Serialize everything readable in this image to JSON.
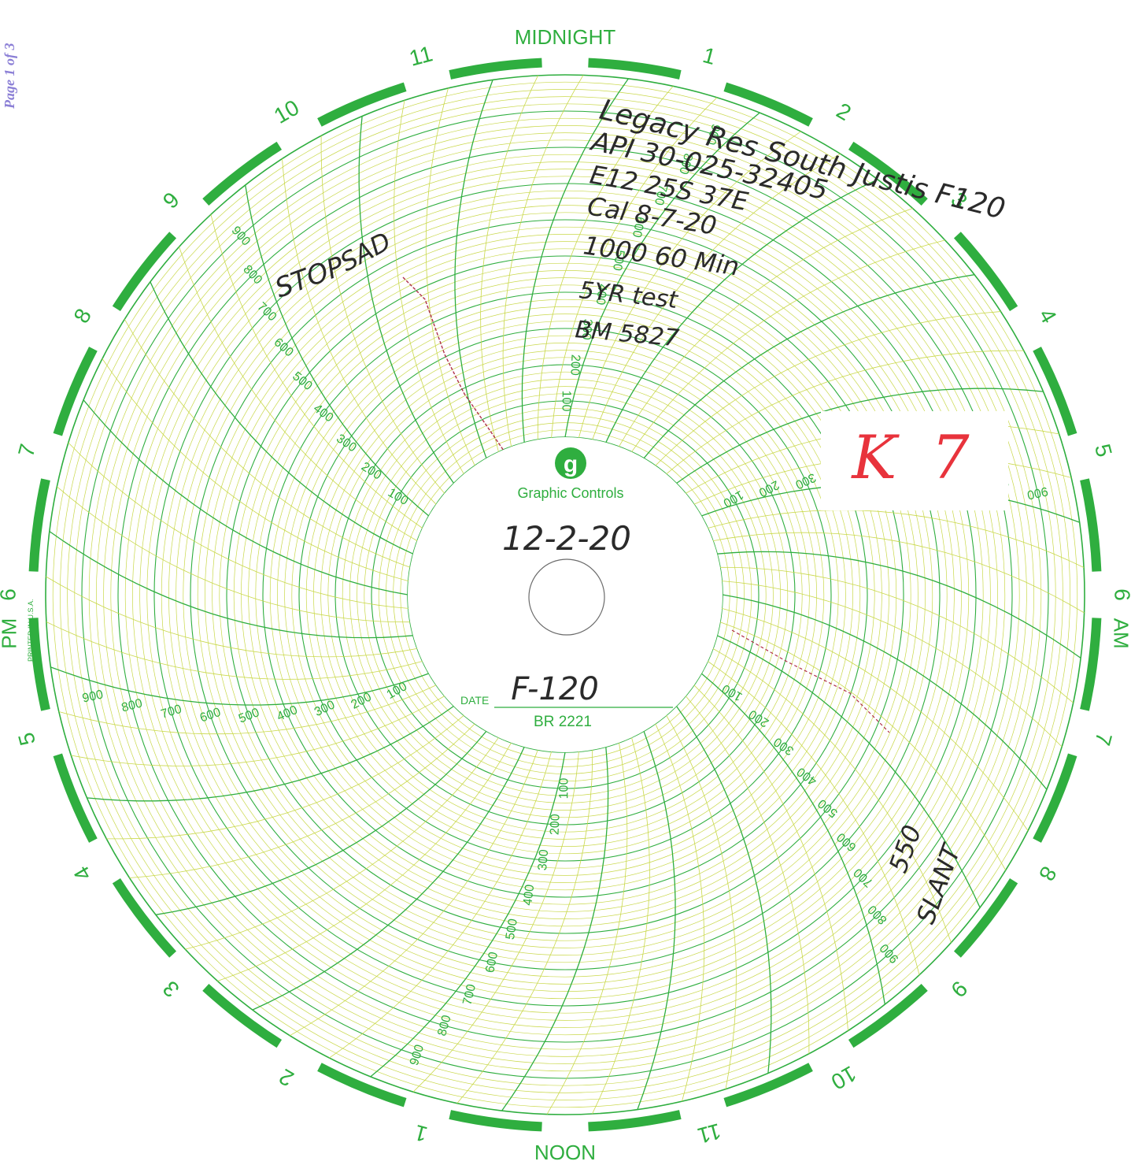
{
  "page": {
    "label": "Page 1 of 3"
  },
  "chart": {
    "brand": "Graphic Controls",
    "logo_letter": "g",
    "date_label": "DATE",
    "chart_number": "BR 2221",
    "printed_in": "PRINTED IN U.S.A.",
    "top_label": "MIDNIGHT",
    "bottom_label": "NOON",
    "am_label": "AM",
    "pm_label": "PM",
    "hours": [
      {
        "text": "MIDNIGHT",
        "angle": 0
      },
      {
        "text": "1",
        "angle": 15
      },
      {
        "text": "2",
        "angle": 30
      },
      {
        "text": "3",
        "angle": 45
      },
      {
        "text": "4",
        "angle": 60
      },
      {
        "text": "5",
        "angle": 75
      },
      {
        "text": "6",
        "angle": 90
      },
      {
        "text": "7",
        "angle": 105
      },
      {
        "text": "8",
        "angle": 120
      },
      {
        "text": "9",
        "angle": 135
      },
      {
        "text": "10",
        "angle": 150
      },
      {
        "text": "11",
        "angle": 165
      },
      {
        "text": "NOON",
        "angle": 180
      },
      {
        "text": "1",
        "angle": 195
      },
      {
        "text": "2",
        "angle": 210
      },
      {
        "text": "3",
        "angle": 225
      },
      {
        "text": "4",
        "angle": 240
      },
      {
        "text": "5",
        "angle": 255
      },
      {
        "text": "6",
        "angle": 270
      },
      {
        "text": "7",
        "angle": 285
      },
      {
        "text": "8",
        "angle": 300
      },
      {
        "text": "9",
        "angle": 315
      },
      {
        "text": "10",
        "angle": 330
      },
      {
        "text": "11",
        "angle": 345
      }
    ],
    "scale_values": [
      "100",
      "200",
      "300",
      "400",
      "500",
      "600",
      "700",
      "800",
      "900"
    ],
    "scale_angles": [
      0,
      60,
      120,
      180,
      240,
      300
    ],
    "colors": {
      "grid": "#2fae3f",
      "fine_grid": "#c9d84a",
      "trace": "#b0304a",
      "ink": "#2a2a2a"
    }
  },
  "handwriting": {
    "lines": [
      "Legacy Res South Justis F120",
      "API 30-025-32405",
      "E12 25S 37E",
      "Cal 8-7-20",
      "1000 60 Min",
      "5YR test",
      "BM 5827"
    ],
    "stop": "STOP",
    "start": "SAD",
    "center_date": "12-2-20",
    "date_value": "F-120",
    "side_note": [
      "550",
      "SLANT"
    ]
  },
  "stamp": {
    "text": "K 7",
    "color": "#e8333c"
  }
}
